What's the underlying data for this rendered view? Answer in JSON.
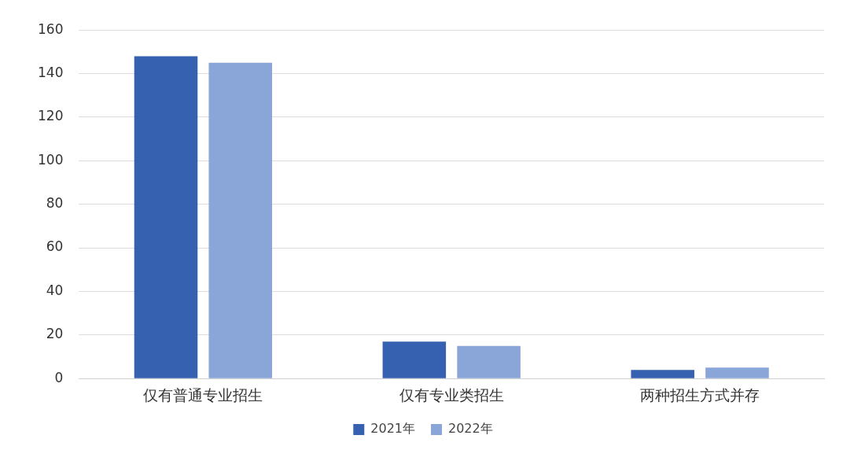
{
  "chart_data": {
    "type": "bar",
    "categories": [
      "仅有普通专业招生",
      "仅有专业类招生",
      "两种招生方式并存"
    ],
    "series": [
      {
        "name": "2021年",
        "color": "#3561b0",
        "values": [
          148,
          17,
          4
        ]
      },
      {
        "name": "2022年",
        "color": "#8aa5d8",
        "values": [
          145,
          15,
          5
        ]
      }
    ],
    "ylim": [
      0,
      160
    ],
    "yticks": [
      0,
      20,
      40,
      60,
      80,
      100,
      120,
      140,
      160
    ],
    "grid": "y",
    "legend": "bottom"
  }
}
